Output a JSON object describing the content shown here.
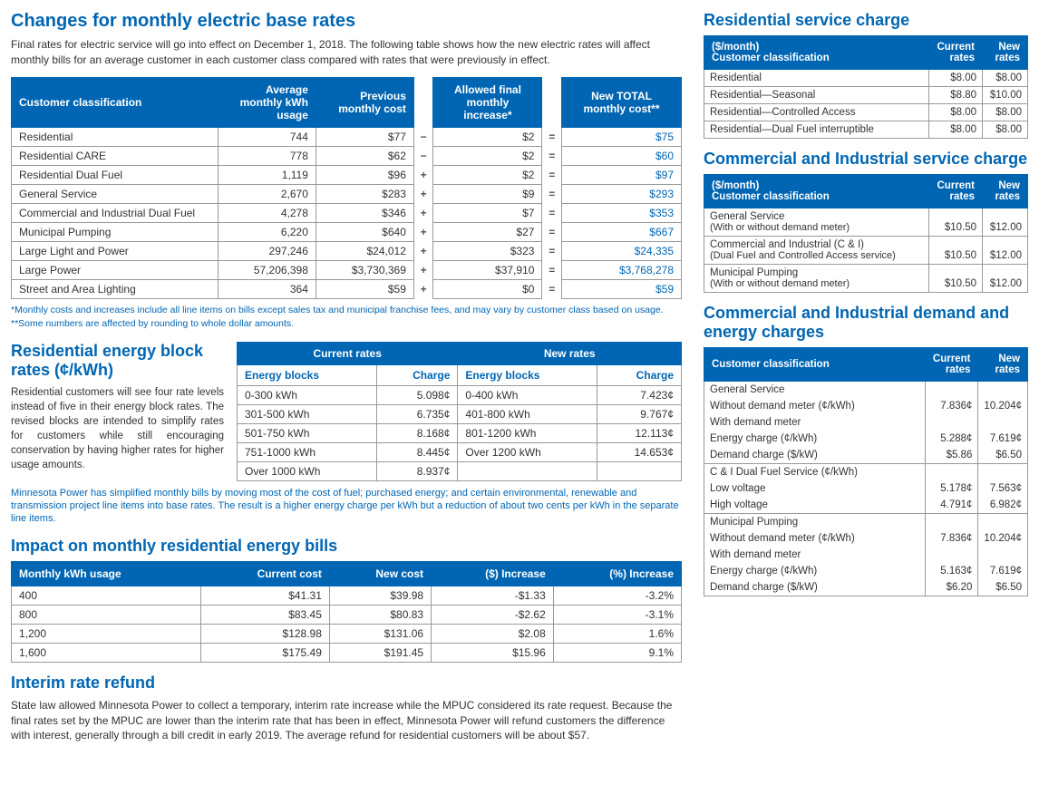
{
  "colors": {
    "primary": "#0066b3",
    "border": "#999999",
    "text": "#333333",
    "bg": "#ffffff"
  },
  "left": {
    "h_changes": "Changes for monthly electric base rates",
    "p_changes": "Final rates for electric service will go into effect on December 1, 2018. The following table shows how the new electric rates will affect monthly bills for an average customer in each customer class compared with rates that were previously in effect.",
    "main_table": {
      "headers": {
        "classification": "Customer classification",
        "avg_usage": "Average monthly kWh usage",
        "prev_cost": "Previous monthly cost",
        "increase": "Allowed final monthly increase*",
        "new_total": "New TOTAL monthly cost**"
      },
      "rows": [
        {
          "c": "Residential",
          "u": "744",
          "p": "$77",
          "op": "−",
          "i": "$2",
          "t": "$75"
        },
        {
          "c": "Residential CARE",
          "u": "778",
          "p": "$62",
          "op": "−",
          "i": "$2",
          "t": "$60"
        },
        {
          "c": "Residential Dual Fuel",
          "u": "1,119",
          "p": "$96",
          "op": "+",
          "i": "$2",
          "t": "$97"
        },
        {
          "c": "General Service",
          "u": "2,670",
          "p": "$283",
          "op": "+",
          "i": "$9",
          "t": "$293"
        },
        {
          "c": "Commercial and Industrial Dual Fuel",
          "u": "4,278",
          "p": "$346",
          "op": "+",
          "i": "$7",
          "t": "$353"
        },
        {
          "c": "Municipal Pumping",
          "u": "6,220",
          "p": "$640",
          "op": "+",
          "i": "$27",
          "t": "$667"
        },
        {
          "c": "Large Light and Power",
          "u": "297,246",
          "p": "$24,012",
          "op": "+",
          "i": "$323",
          "t": "$24,335"
        },
        {
          "c": "Large Power",
          "u": "57,206,398",
          "p": "$3,730,369",
          "op": "+",
          "i": "$37,910",
          "t": "$3,768,278"
        },
        {
          "c": "Street and Area Lighting",
          "u": "364",
          "p": "$59",
          "op": "+",
          "i": "$0",
          "t": "$59"
        }
      ],
      "equals": "="
    },
    "footnote1": "*Monthly costs and increases include all line items on bills except sales tax and municipal franchise fees, and may vary by customer class based on usage.",
    "footnote2": "**Some numbers are affected by rounding to whole dollar amounts.",
    "h_block": "Residential energy block rates (¢/kWh)",
    "p_block": "Residential customers will see four rate levels instead of five in their energy block rates. The revised blocks are intended to simplify rates for customers while still encouraging conservation by having higher rates for higher usage amounts.",
    "block_table": {
      "current_head": "Current rates",
      "new_head": "New rates",
      "col_energy": "Energy blocks",
      "col_charge": "Charge",
      "current": [
        {
          "b": "0-300 kWh",
          "c": "5.098¢"
        },
        {
          "b": "301-500 kWh",
          "c": "6.735¢"
        },
        {
          "b": "501-750 kWh",
          "c": "8.168¢"
        },
        {
          "b": "751-1000 kWh",
          "c": "8.445¢"
        },
        {
          "b": "Over 1000 kWh",
          "c": "8.937¢"
        }
      ],
      "new": [
        {
          "b": "0-400 kWh",
          "c": "7.423¢"
        },
        {
          "b": "401-800 kWh",
          "c": "9.767¢"
        },
        {
          "b": "801-1200 kWh",
          "c": "12.113¢"
        },
        {
          "b": "Over 1200 kWh",
          "c": "14.653¢"
        },
        {
          "b": "",
          "c": ""
        }
      ]
    },
    "block_note": "Minnesota Power has simplified monthly bills by moving most of the cost of fuel; purchased energy; and certain environmental, renewable and transmission project line items into base rates. The result is a higher energy charge per kWh but a reduction of about two cents per kWh in the separate line items.",
    "h_impact": "Impact on monthly residential energy bills",
    "impact_table": {
      "headers": {
        "usage": "Monthly kWh usage",
        "cur": "Current cost",
        "new": "New cost",
        "inc": "($) Increase",
        "pct": "(%) Increase"
      },
      "rows": [
        {
          "u": "400",
          "c": "$41.31",
          "n": "$39.98",
          "i": "-$1.33",
          "p": "-3.2%"
        },
        {
          "u": "800",
          "c": "$83.45",
          "n": "$80.83",
          "i": "-$2.62",
          "p": "-3.1%"
        },
        {
          "u": "1,200",
          "c": "$128.98",
          "n": "$131.06",
          "i": "$2.08",
          "p": "1.6%"
        },
        {
          "u": "1,600",
          "c": "$175.49",
          "n": "$191.45",
          "i": "$15.96",
          "p": "9.1%"
        }
      ]
    },
    "h_refund": "Interim rate refund",
    "p_refund": "State law allowed Minnesota Power to collect a temporary, interim rate increase while the MPUC considered its rate request. Because the final rates set by the MPUC are lower than the interim rate that has been in effect, Minnesota Power will refund customers the difference with interest, generally through a bill credit in early 2019. The average refund for residential customers will be about $57."
  },
  "right": {
    "h_res": "Residential service charge",
    "res_table": {
      "h1": "($/month)",
      "h1b": "Customer classification",
      "h2": "Current rates",
      "h3": "New rates",
      "rows": [
        {
          "c": "Residential",
          "cur": "$8.00",
          "new": "$8.00"
        },
        {
          "c": "Residential—Seasonal",
          "cur": "$8.80",
          "new": "$10.00"
        },
        {
          "c": "Residential—Controlled Access",
          "cur": "$8.00",
          "new": "$8.00"
        },
        {
          "c": "Residential—Dual Fuel interruptible",
          "cur": "$8.00",
          "new": "$8.00"
        }
      ]
    },
    "h_ci": "Commercial and Industrial service charge",
    "ci_table": {
      "h1": "($/month)",
      "h1b": "Customer classification",
      "h2": "Current rates",
      "h3": "New rates",
      "rows": [
        {
          "c": "General Service",
          "sub": "(With or without demand meter)",
          "cur": "$10.50",
          "new": "$12.00"
        },
        {
          "c": "Commercial and Industrial (C & I)",
          "sub": "(Dual Fuel and Controlled Access service)",
          "cur": "$10.50",
          "new": "$12.00"
        },
        {
          "c": "Municipal Pumping",
          "sub": "(With or without demand meter)",
          "cur": "$10.50",
          "new": "$12.00"
        }
      ]
    },
    "h_demand": "Commercial and Industrial demand and energy charges",
    "demand_table": {
      "h1": "Customer classification",
      "h2": "Current rates",
      "h3": "New rates",
      "groups": [
        {
          "label": "General Service",
          "rows": [
            {
              "c": "Without demand meter (¢/kWh)",
              "cur": "7.836¢",
              "new": "10.204¢",
              "indent": 1
            },
            {
              "c": "With demand meter",
              "cur": "",
              "new": "",
              "indent": 1
            },
            {
              "c": "Energy charge (¢/kWh)",
              "cur": "5.288¢",
              "new": "7.619¢",
              "indent": 2
            },
            {
              "c": "Demand charge ($/kW)",
              "cur": "$5.86",
              "new": "$6.50",
              "indent": 2
            }
          ]
        },
        {
          "label": "C & I Dual Fuel Service (¢/kWh)",
          "rows": [
            {
              "c": "Low voltage",
              "cur": "5.178¢",
              "new": "7.563¢",
              "indent": 1
            },
            {
              "c": "High voltage",
              "cur": "4.791¢",
              "new": "6.982¢",
              "indent": 1
            }
          ]
        },
        {
          "label": "Municipal Pumping",
          "rows": [
            {
              "c": "Without demand meter (¢/kWh)",
              "cur": "7.836¢",
              "new": "10.204¢",
              "indent": 1
            },
            {
              "c": "With demand meter",
              "cur": "",
              "new": "",
              "indent": 1
            },
            {
              "c": "Energy charge (¢/kWh)",
              "cur": "5.163¢",
              "new": "7.619¢",
              "indent": 2
            },
            {
              "c": "Demand charge ($/kW)",
              "cur": "$6.20",
              "new": "$6.50",
              "indent": 2
            }
          ]
        }
      ]
    }
  }
}
